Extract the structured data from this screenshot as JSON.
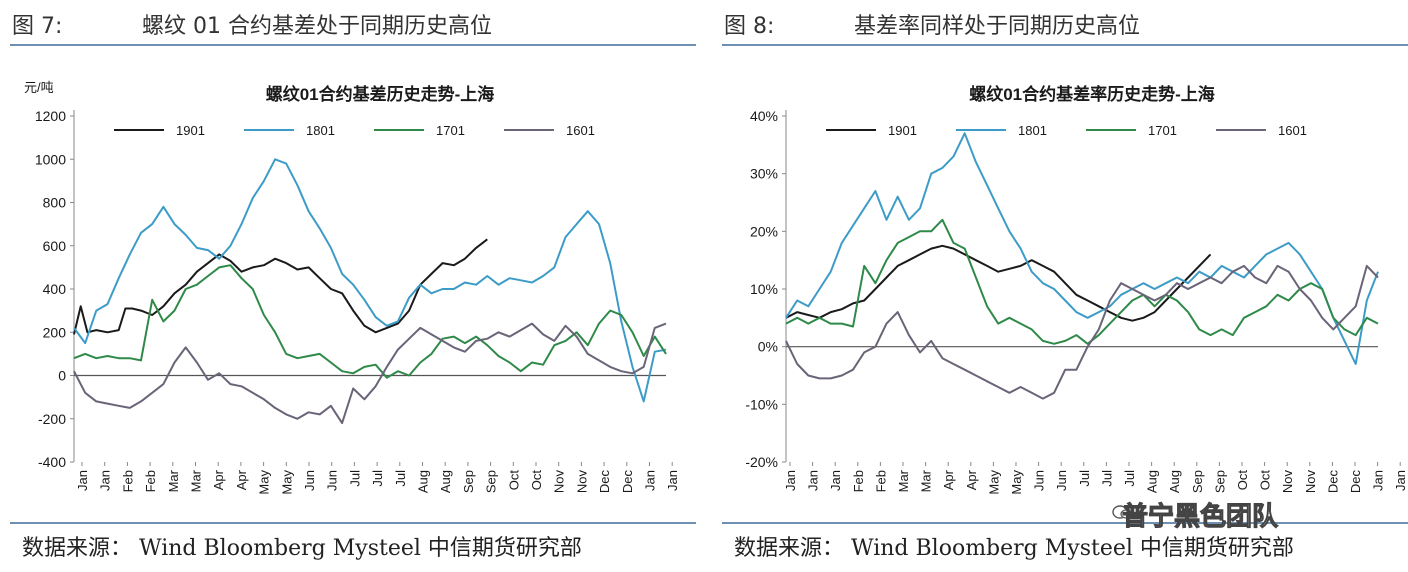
{
  "figures": [
    {
      "fig_label": "图 7:",
      "fig_title": "螺纹 01 合约基差处于同期历史高位",
      "source": "数据来源： Wind Bloomberg Mysteel 中信期货研究部"
    },
    {
      "fig_label": "图 8:",
      "fig_title": "基差率同样处于同期历史高位",
      "source": "数据来源： Wind Bloomberg Mysteel 中信期货研究部"
    }
  ],
  "watermark": "普宁黑色团队",
  "colors": {
    "s1901": "#1a1a1a",
    "s1801": "#3d9cc7",
    "s1701": "#2f8a4a",
    "s1601": "#6b6478",
    "rule": "#6f8fb3"
  },
  "chart_data": [
    {
      "type": "line",
      "title": "螺纹01合约基差历史走势-上海",
      "ylabel": "元/吨",
      "xlabel": "",
      "ylim": [
        -400,
        1200
      ],
      "yticks": [
        -400,
        -200,
        0,
        200,
        400,
        600,
        800,
        1000,
        1200
      ],
      "ytick_labels": [
        "-400",
        "-200",
        "0",
        "200",
        "400",
        "600",
        "800",
        "1000",
        "1200"
      ],
      "x_tick_labels": [
        "Jan",
        "Jan",
        "Feb",
        "Feb",
        "Mar",
        "Mar",
        "Apr",
        "Apr",
        "May",
        "May",
        "Jun",
        "Jun",
        "Jul",
        "Jul",
        "Jul",
        "Aug",
        "Aug",
        "Sep",
        "Sep",
        "Oct",
        "Oct",
        "Nov",
        "Nov",
        "Dec",
        "Dec",
        "Jan",
        "Jan"
      ],
      "legend_position": "top",
      "series": [
        {
          "name": "1901",
          "color_key": "s1901",
          "x": [
            0,
            0.3,
            0.6,
            1,
            1.5,
            2,
            2.3,
            2.6,
            3,
            3.5,
            4,
            4.5,
            5,
            5.5,
            6,
            6.5,
            7,
            7.5,
            8,
            8.5,
            9,
            9.5,
            10,
            10.5,
            11,
            11.5,
            12,
            12.5,
            13,
            13.5,
            14,
            14.5,
            15,
            15.5,
            16,
            16.5,
            17,
            17.5,
            18,
            18.5
          ],
          "y": [
            190,
            320,
            200,
            210,
            200,
            210,
            310,
            310,
            300,
            280,
            320,
            380,
            420,
            480,
            520,
            560,
            530,
            480,
            500,
            510,
            540,
            520,
            490,
            500,
            450,
            400,
            380,
            300,
            230,
            200,
            220,
            240,
            300,
            420,
            470,
            520,
            510,
            540,
            590,
            630
          ]
        },
        {
          "name": "1801",
          "color_key": "s1801",
          "x": [
            0,
            0.5,
            1,
            1.5,
            2,
            2.5,
            3,
            3.5,
            4,
            4.5,
            5,
            5.5,
            6,
            6.5,
            7,
            7.5,
            8,
            8.5,
            9,
            9.5,
            10,
            10.5,
            11,
            11.5,
            12,
            12.5,
            13,
            13.5,
            14,
            14.5,
            15,
            15.5,
            16,
            16.5,
            17,
            17.5,
            18,
            18.5,
            19,
            19.5,
            20,
            20.5,
            21,
            21.5,
            22,
            22.5,
            23,
            23.5,
            24,
            24.5,
            25,
            25.5,
            26,
            26.5
          ],
          "y": [
            220,
            150,
            300,
            330,
            450,
            560,
            660,
            700,
            780,
            700,
            650,
            590,
            580,
            540,
            600,
            700,
            820,
            900,
            1000,
            980,
            880,
            760,
            680,
            590,
            470,
            420,
            350,
            270,
            230,
            250,
            360,
            420,
            380,
            400,
            400,
            430,
            420,
            460,
            420,
            450,
            440,
            430,
            460,
            500,
            640,
            700,
            760,
            700,
            520,
            250,
            40,
            -120,
            110,
            120
          ]
        },
        {
          "name": "1701",
          "color_key": "s1701",
          "x": [
            0,
            0.5,
            1,
            1.5,
            2,
            2.5,
            3,
            3.5,
            4,
            4.5,
            5,
            5.5,
            6,
            6.5,
            7,
            7.5,
            8,
            8.5,
            9,
            9.5,
            10,
            10.5,
            11,
            11.5,
            12,
            12.5,
            13,
            13.5,
            14,
            14.5,
            15,
            15.5,
            16,
            16.5,
            17,
            17.5,
            18,
            18.5,
            19,
            19.5,
            20,
            20.5,
            21,
            21.5,
            22,
            22.5,
            23,
            23.5,
            24,
            24.5,
            25,
            25.5,
            26,
            26.5
          ],
          "y": [
            80,
            100,
            80,
            90,
            80,
            80,
            70,
            350,
            250,
            300,
            400,
            420,
            460,
            500,
            510,
            450,
            400,
            280,
            200,
            100,
            80,
            90,
            100,
            60,
            20,
            10,
            40,
            50,
            -10,
            20,
            0,
            60,
            100,
            170,
            180,
            150,
            180,
            140,
            90,
            60,
            20,
            60,
            50,
            140,
            160,
            200,
            140,
            240,
            300,
            280,
            200,
            90,
            180,
            100
          ]
        },
        {
          "name": "1601",
          "color_key": "s1601",
          "x": [
            0,
            0.5,
            1,
            1.5,
            2,
            2.5,
            3,
            3.5,
            4,
            4.5,
            5,
            5.5,
            6,
            6.5,
            7,
            7.5,
            8,
            8.5,
            9,
            9.5,
            10,
            10.5,
            11,
            11.5,
            12,
            12.5,
            13,
            13.5,
            14,
            14.5,
            15,
            15.5,
            16,
            16.5,
            17,
            17.5,
            18,
            18.5,
            19,
            19.5,
            20,
            20.5,
            21,
            21.5,
            22,
            22.5,
            23,
            23.5,
            24,
            24.5,
            25,
            25.5,
            26,
            26.5
          ],
          "y": [
            20,
            -80,
            -120,
            -130,
            -140,
            -150,
            -120,
            -80,
            -40,
            60,
            130,
            60,
            -20,
            10,
            -40,
            -50,
            -80,
            -110,
            -150,
            -180,
            -200,
            -170,
            -180,
            -140,
            -220,
            -60,
            -110,
            -50,
            40,
            120,
            170,
            220,
            190,
            160,
            130,
            110,
            160,
            170,
            200,
            180,
            210,
            240,
            190,
            160,
            230,
            180,
            100,
            70,
            40,
            20,
            10,
            40,
            220,
            240
          ]
        }
      ]
    },
    {
      "type": "line",
      "title": "螺纹01合约基差率历史走势-上海",
      "ylabel": "",
      "xlabel": "",
      "ylim": [
        -20,
        40
      ],
      "yticks": [
        -20,
        -10,
        0,
        10,
        20,
        30,
        40
      ],
      "ytick_labels": [
        "-20%",
        "-10%",
        "0%",
        "10%",
        "20%",
        "30%",
        "40%"
      ],
      "x_tick_labels": [
        "Jan",
        "Jan",
        "Jan",
        "Feb",
        "Feb",
        "Mar",
        "Mar",
        "Apr",
        "Apr",
        "May",
        "May",
        "Jun",
        "Jun",
        "Jul",
        "Jul",
        "Jul",
        "Aug",
        "Aug",
        "Sep",
        "Sep",
        "Oct",
        "Oct",
        "Nov",
        "Nov",
        "Dec",
        "Dec",
        "Jan",
        "Jan"
      ],
      "legend_position": "top",
      "series": [
        {
          "name": "1901",
          "color_key": "s1901",
          "x": [
            0,
            0.5,
            1,
            1.5,
            2,
            2.5,
            3,
            3.5,
            4,
            4.5,
            5,
            5.5,
            6,
            6.5,
            7,
            7.5,
            8,
            8.5,
            9,
            9.5,
            10,
            10.5,
            11,
            11.5,
            12,
            12.5,
            13,
            13.5,
            14,
            14.5,
            15,
            15.5,
            16,
            16.5,
            17,
            17.5,
            18,
            18.5,
            19
          ],
          "y": [
            5,
            6,
            5.5,
            5,
            6,
            6.5,
            7.5,
            8,
            10,
            12,
            14,
            15,
            16,
            17,
            17.5,
            17,
            16,
            15,
            14,
            13,
            13.5,
            14,
            15,
            14,
            13,
            11,
            9,
            8,
            7,
            6,
            5,
            4.5,
            5,
            6,
            8,
            10,
            12,
            14,
            16
          ]
        },
        {
          "name": "1801",
          "color_key": "s1801",
          "x": [
            0,
            0.5,
            1,
            1.5,
            2,
            2.5,
            3,
            3.5,
            4,
            4.5,
            5,
            5.5,
            6,
            6.5,
            7,
            7.5,
            8,
            8.5,
            9,
            9.5,
            10,
            10.5,
            11,
            11.5,
            12,
            12.5,
            13,
            13.5,
            14,
            14.5,
            15,
            15.5,
            16,
            16.5,
            17,
            17.5,
            18,
            18.5,
            19,
            19.5,
            20,
            20.5,
            21,
            21.5,
            22,
            22.5,
            23,
            23.5,
            24,
            24.5,
            25,
            25.5,
            26,
            26.5
          ],
          "y": [
            5,
            8,
            7,
            10,
            13,
            18,
            21,
            24,
            27,
            22,
            26,
            22,
            24,
            30,
            31,
            33,
            37,
            32,
            28,
            24,
            20,
            17,
            13,
            11,
            10,
            8,
            6,
            5,
            6,
            7,
            9,
            10,
            11,
            10,
            11,
            12,
            11,
            13,
            12,
            14,
            13,
            12,
            14,
            16,
            17,
            18,
            16,
            13,
            10,
            5,
            1,
            -3,
            8,
            13
          ]
        },
        {
          "name": "1701",
          "color_key": "s1701",
          "x": [
            0,
            0.5,
            1,
            1.5,
            2,
            2.5,
            3,
            3.5,
            4,
            4.5,
            5,
            5.5,
            6,
            6.5,
            7,
            7.5,
            8,
            8.5,
            9,
            9.5,
            10,
            10.5,
            11,
            11.5,
            12,
            12.5,
            13,
            13.5,
            14,
            14.5,
            15,
            15.5,
            16,
            16.5,
            17,
            17.5,
            18,
            18.5,
            19,
            19.5,
            20,
            20.5,
            21,
            21.5,
            22,
            22.5,
            23,
            23.5,
            24,
            24.5,
            25,
            25.5,
            26,
            26.5
          ],
          "y": [
            4,
            5,
            4,
            5,
            4,
            4,
            3.5,
            14,
            11,
            15,
            18,
            19,
            20,
            20,
            22,
            18,
            17,
            12,
            7,
            4,
            5,
            4,
            3,
            1,
            0.5,
            1,
            2,
            0.5,
            2,
            4,
            6,
            8,
            9,
            7,
            9,
            8,
            6,
            3,
            2,
            3,
            2,
            5,
            6,
            7,
            9,
            8,
            10,
            11,
            10,
            5,
            3,
            2,
            5,
            4
          ]
        },
        {
          "name": "1601",
          "color_key": "s1601",
          "x": [
            0,
            0.5,
            1,
            1.5,
            2,
            2.5,
            3,
            3.5,
            4,
            4.5,
            5,
            5.5,
            6,
            6.5,
            7,
            7.5,
            8,
            8.5,
            9,
            9.5,
            10,
            10.5,
            11,
            11.5,
            12,
            12.5,
            13,
            13.5,
            14,
            14.5,
            15,
            15.5,
            16,
            16.5,
            17,
            17.5,
            18,
            18.5,
            19,
            19.5,
            20,
            20.5,
            21,
            21.5,
            22,
            22.5,
            23,
            23.5,
            24,
            24.5,
            25,
            25.5,
            26,
            26.5
          ],
          "y": [
            1,
            -3,
            -5,
            -5.5,
            -5.5,
            -5,
            -4,
            -1,
            0,
            4,
            6,
            2,
            -1,
            1,
            -2,
            -3,
            -4,
            -5,
            -6,
            -7,
            -8,
            -7,
            -8,
            -9,
            -8,
            -4,
            -4,
            0,
            3,
            8,
            11,
            10,
            9,
            8,
            9,
            11,
            10,
            11,
            12,
            11,
            13,
            14,
            12,
            11,
            14,
            13,
            10,
            8,
            5,
            3,
            5,
            7,
            14,
            12
          ]
        }
      ]
    }
  ]
}
